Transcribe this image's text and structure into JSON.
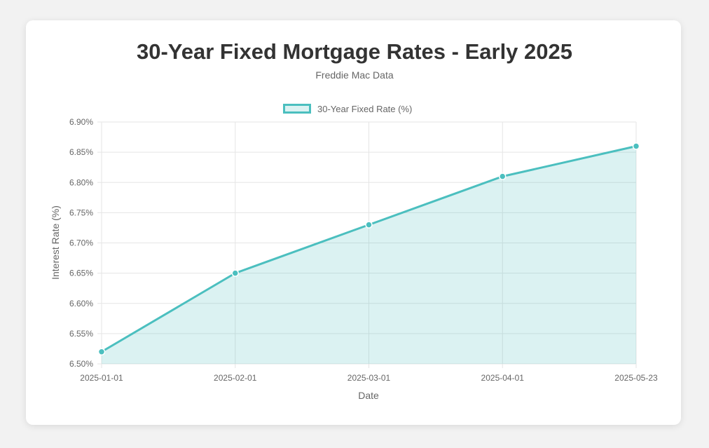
{
  "chart_data": {
    "type": "area",
    "title": "30-Year Fixed Mortgage Rates - Early 2025",
    "subtitle": "Freddie Mac Data",
    "xlabel": "Date",
    "ylabel": "Interest Rate (%)",
    "categories": [
      "2025-01-01",
      "2025-02-01",
      "2025-03-01",
      "2025-04-01",
      "2025-05-23"
    ],
    "series": [
      {
        "name": "30-Year Fixed Rate (%)",
        "values": [
          6.52,
          6.65,
          6.73,
          6.81,
          6.86
        ]
      }
    ],
    "ylim": [
      6.5,
      6.9
    ],
    "y_ticks": [
      "6.50%",
      "6.55%",
      "6.60%",
      "6.65%",
      "6.70%",
      "6.75%",
      "6.80%",
      "6.85%",
      "6.90%"
    ],
    "grid": true,
    "legend": "top",
    "colors": {
      "line": "#4bbfbf",
      "fill": "rgba(75,191,191,0.2)",
      "grid": "#e5e5e5"
    }
  }
}
